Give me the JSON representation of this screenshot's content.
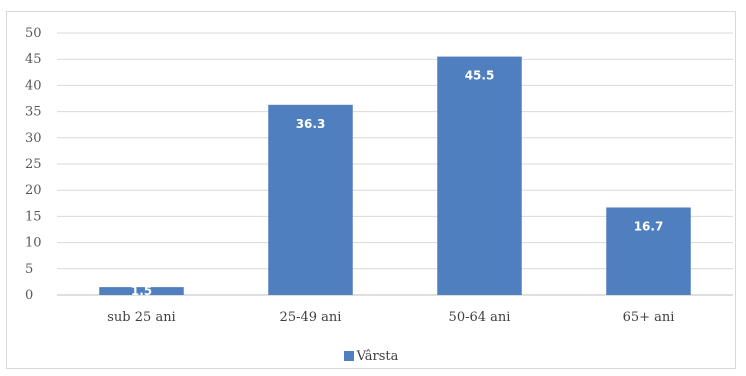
{
  "chart_data": {
    "type": "bar",
    "categories": [
      "sub 25 ani",
      "25-49 ani",
      "50-64 ani",
      "65+ ani"
    ],
    "series": [
      {
        "name": "Vârsta",
        "values": [
          1.5,
          36.3,
          45.5,
          16.7
        ],
        "color": "#4f7fbe"
      }
    ],
    "data_labels": [
      "1.5",
      "36.3",
      "45.5",
      "16.7"
    ],
    "ylim": [
      0,
      50
    ],
    "yticks": [
      0,
      5,
      10,
      15,
      20,
      25,
      30,
      35,
      40,
      45,
      50
    ],
    "grid": true,
    "legend_position": "bottom",
    "title": "",
    "xlabel": "",
    "ylabel": ""
  },
  "legend": {
    "label": "Vârsta"
  }
}
